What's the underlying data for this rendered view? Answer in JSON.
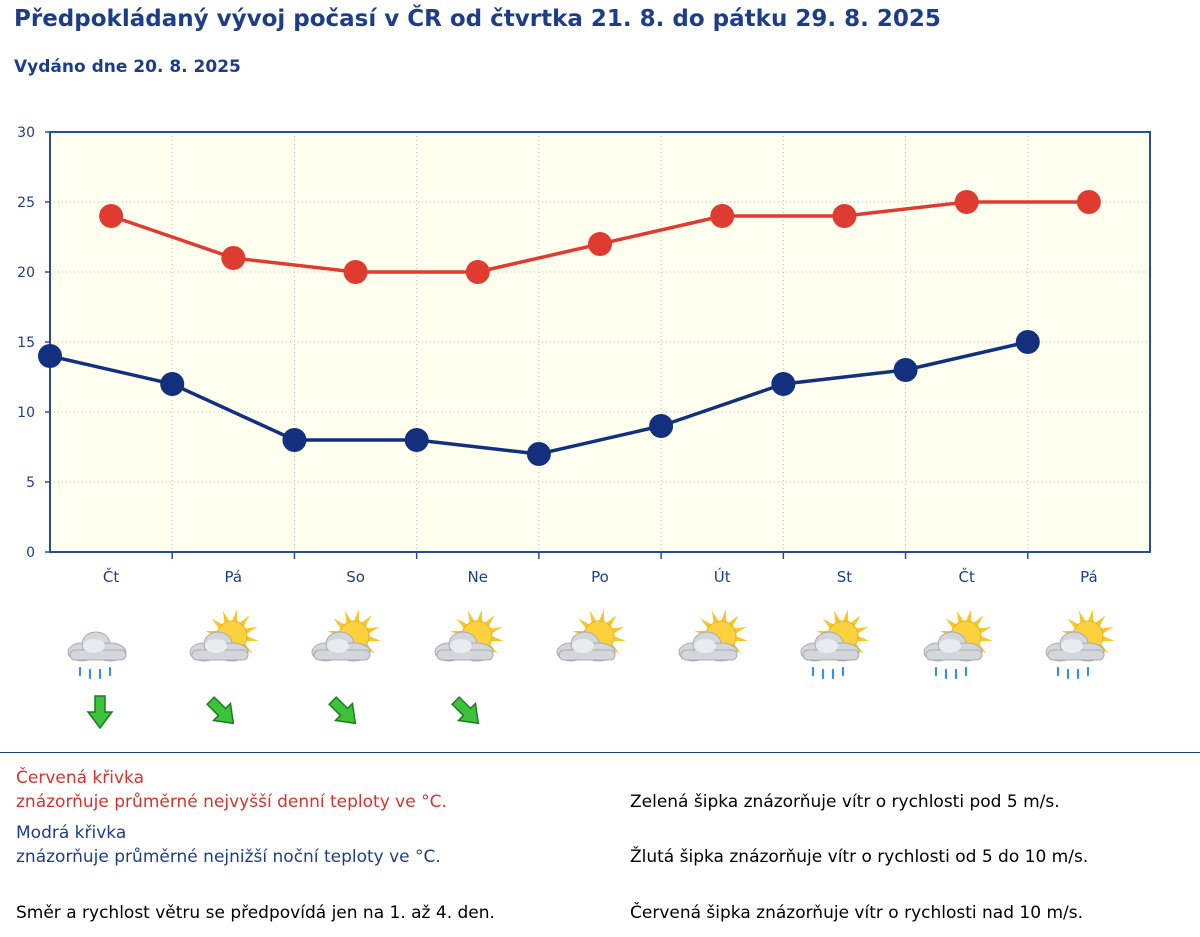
{
  "header": {
    "title": "Předpokládaný vývoj počasí v ČR od čtvrtka 21. 8. do pátku 29. 8. 2025",
    "issued": "Vydáno dne 20. 8. 2025"
  },
  "chart_data": {
    "type": "line",
    "categories": [
      "Čt",
      "Pá",
      "So",
      "Ne",
      "Po",
      "Út",
      "St",
      "Čt",
      "Pá"
    ],
    "ylim": [
      0,
      30
    ],
    "yticks": [
      0,
      5,
      10,
      15,
      20,
      25,
      30
    ],
    "grid": true,
    "series": [
      {
        "name": "Červená křivka",
        "color": "#e03b31",
        "values": [
          24,
          21,
          20,
          20,
          22,
          24,
          24,
          25,
          25
        ]
      },
      {
        "name": "Modrá křivka",
        "color": "#13307e",
        "values": [
          14,
          12,
          8,
          8,
          7,
          9,
          12,
          13,
          15
        ]
      }
    ]
  },
  "weather": [
    {
      "icon": "rain-cloud-icon",
      "rain": true,
      "wind": "wind-arrow-south-icon"
    },
    {
      "icon": "sun-cloud-icon",
      "rain": false,
      "wind": "wind-arrow-southeast-icon"
    },
    {
      "icon": "sun-cloud-icon",
      "rain": false,
      "wind": "wind-arrow-southeast-icon"
    },
    {
      "icon": "sun-cloud-icon",
      "rain": false,
      "wind": "wind-arrow-southeast-icon"
    },
    {
      "icon": "sun-cloud-icon",
      "rain": false,
      "wind": null
    },
    {
      "icon": "sun-cloud-icon",
      "rain": false,
      "wind": null
    },
    {
      "icon": "sun-cloud-rain-icon",
      "rain": true,
      "wind": null
    },
    {
      "icon": "sun-cloud-rain-icon",
      "rain": true,
      "wind": null
    },
    {
      "icon": "sun-cloud-rain-icon",
      "rain": true,
      "wind": null
    }
  ],
  "colors": {
    "wind_arrow": "#3cc33c",
    "plot_bg": "#fffff0",
    "frame": "#2a4a9a"
  },
  "legend": {
    "red_title": "Červená křivka",
    "red_desc": "znázorňuje průměrné nejvyšší denní teploty ve °C.",
    "blue_title": "Modrá křivka",
    "blue_desc": "znázorňuje průměrné nejnižší noční teploty ve °C.",
    "wind_note": "Směr a rychlost větru se předpovídá jen na 1. až 4. den.",
    "green_arrow": "Zelená šipka znázorňuje vítr o rychlosti pod 5 m/s.",
    "yellow_arrow": "Žlutá šipka znázorňuje vítr o rychlosti od 5 do 10 m/s.",
    "red_arrow": "Červená šipka znázorňuje vítr o rychlosti nad 10 m/s."
  }
}
